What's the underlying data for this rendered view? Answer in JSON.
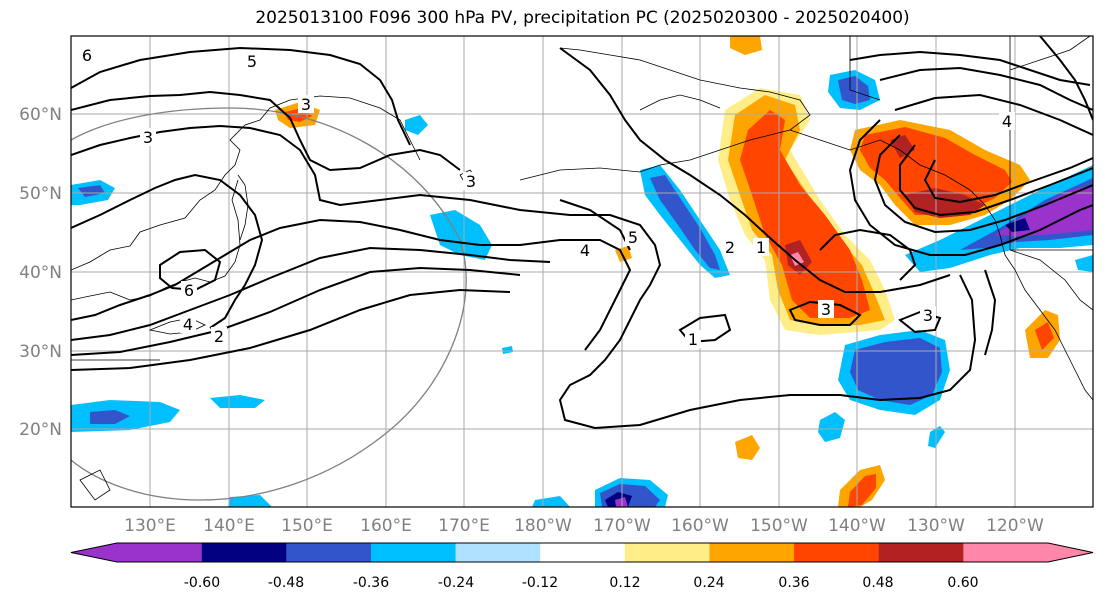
{
  "title": "2025013100 F096 300 hPa PV, precipitation PC (2025020300 - 2025020400)",
  "lat_labels": [
    "60°N",
    "50°N",
    "40°N",
    "30°N",
    "20°N"
  ],
  "lon_labels": [
    "130°E",
    "140°E",
    "150°E",
    "160°E",
    "170°E",
    "180°W",
    "170°W",
    "160°W",
    "150°W",
    "140°W",
    "130°W",
    "120°W"
  ],
  "colorbar": {
    "colors": [
      "#9933cc",
      "#000080",
      "#3355cc",
      "#00bfff",
      "#b0e0ff",
      "#ffffff",
      "#ffee88",
      "#ffa500",
      "#ff4500",
      "#b22222",
      "#ff88aa"
    ],
    "tick_labels": [
      "-0.60",
      "-0.48",
      "-0.36",
      "-0.24",
      "-0.12",
      "0.12",
      "0.24",
      "0.36",
      "0.48",
      "0.60"
    ]
  },
  "contour_labels": [
    "6",
    "5",
    "3",
    "3",
    "6",
    "4",
    "2",
    "3",
    "5",
    "4",
    "2",
    "1",
    "3",
    "3",
    "1",
    "4"
  ]
}
